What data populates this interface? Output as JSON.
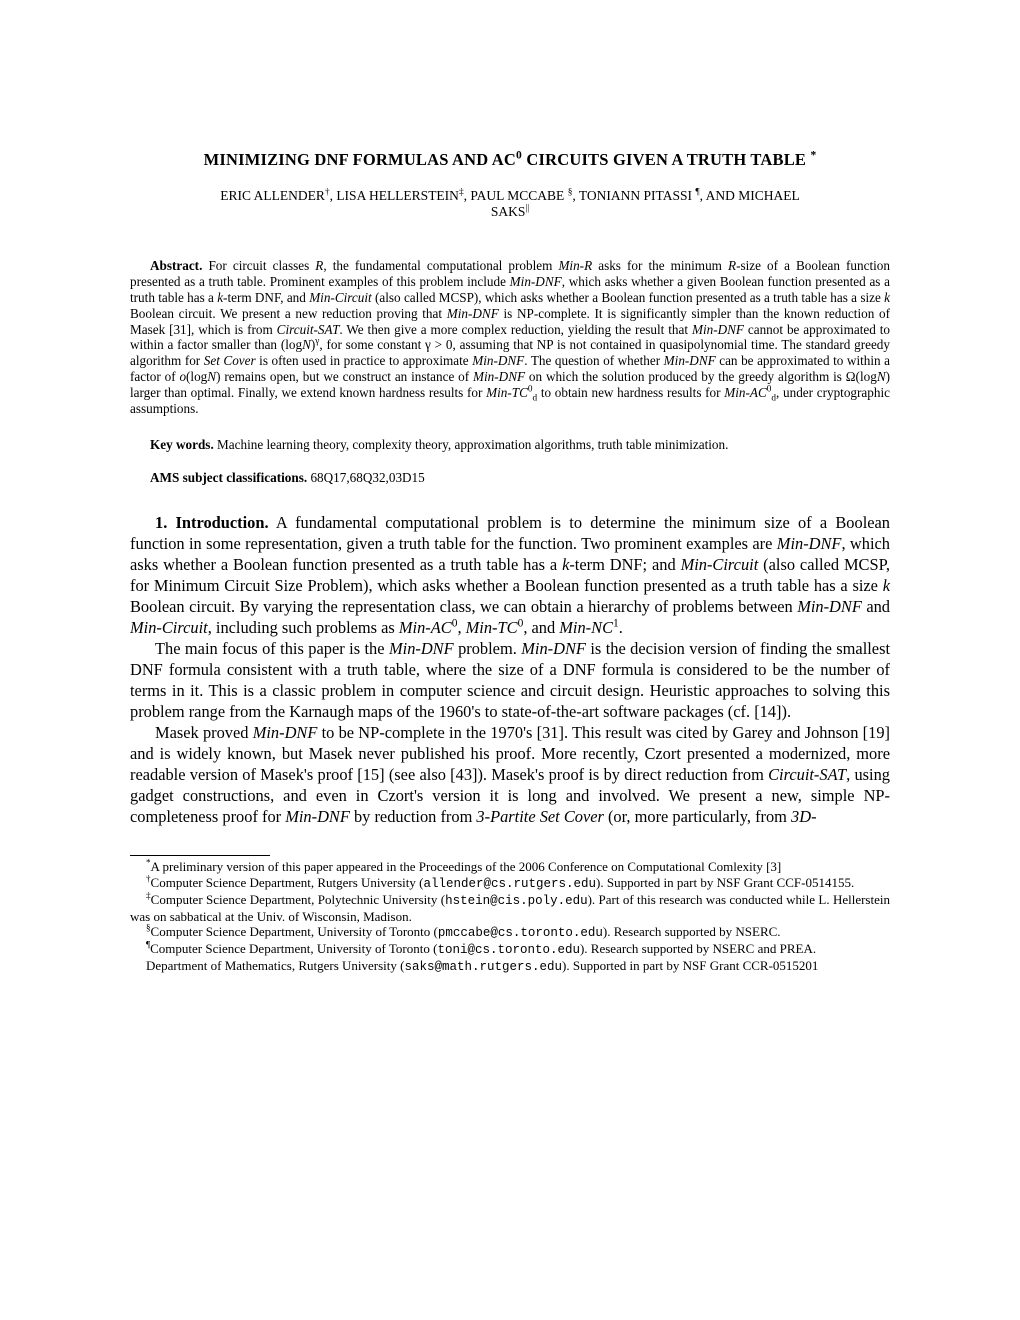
{
  "title": {
    "prefix": "MINIMIZING DNF FORMULAS AND AC",
    "sup": "0",
    "suffix": " CIRCUITS GIVEN A TRUTH TABLE ",
    "marker": "*"
  },
  "authors": {
    "a1": "ERIC ALLENDER",
    "m1": "†",
    "sep1": ", ",
    "a2": "LISA HELLERSTEIN",
    "m2": "‡",
    "sep2": ", ",
    "a3": "PAUL MCCABE ",
    "m3": "§",
    "sep3": ", ",
    "a4": "TONIANN PITASSI ",
    "m4": "¶",
    "sep4": ", ",
    "and": "AND",
    "a5": " MICHAEL",
    "a5b": "SAKS",
    "m5": "||"
  },
  "abstract": {
    "label": "Abstract.",
    "t1": " For circuit classes ",
    "i1": "R",
    "t2": ", the fundamental computational problem ",
    "i2": "Min-R",
    "t3": " asks for the minimum ",
    "i3": "R",
    "t4": "-size of a Boolean function presented as a truth table. Prominent examples of this problem include ",
    "i4": "Min-DNF",
    "t5": ", which asks whether a given Boolean function presented as a truth table has a ",
    "i5": "k",
    "t6": "-term DNF, and ",
    "i6": "Min-Circuit",
    "t7": " (also called MCSP), which asks whether a Boolean function presented as a truth table has a size ",
    "i7": "k",
    "t8": " Boolean circuit. We present a new reduction proving that ",
    "i8": "Min-DNF",
    "t9": " is NP-complete. It is significantly simpler than the known reduction of Masek [31], which is from ",
    "i9": "Circuit-SAT",
    "t10": ". We then give a more complex reduction, yielding the result that ",
    "i10": "Min-DNF",
    "t11": " cannot be approximated to within a factor smaller than (log",
    "i11": "N",
    "t12": ")",
    "sup1": "γ",
    "t13": ", for some constant γ > 0, assuming that NP is not contained in quasipolynomial time. The standard greedy algorithm for ",
    "i12": "Set Cover",
    "t14": " is often used in practice to approximate ",
    "i13": "Min-DNF",
    "t15": ". The question of whether ",
    "i14": "Min-DNF",
    "t16": " can be approximated to within a factor of ",
    "i15": "o",
    "t17": "(log",
    "i16": "N",
    "t18": ") remains open, but we construct an instance of ",
    "i17": "Min-DNF",
    "t19": " on which the solution produced by the greedy algorithm is Ω(log",
    "i18": "N",
    "t20": ") larger than optimal. Finally, we extend known hardness results for ",
    "i19": "Min-TC",
    "sup2": "0",
    "sub1": "d",
    "t21": " to obtain new hardness results for ",
    "i20": "Min-AC",
    "sup3": "0",
    "sub2": "d",
    "t22": ", under cryptographic assumptions."
  },
  "keywords": {
    "label": "Key words.",
    "text": " Machine learning theory, complexity theory, approximation algorithms, truth table minimization."
  },
  "ams": {
    "label": "AMS subject classifications.",
    "text": " 68Q17,68Q32,03D15"
  },
  "section": {
    "heading": "1. Introduction.",
    "p1a": "  A fundamental computational problem is to determine the minimum size of a Boolean function in some representation, given a truth table for the function. Two prominent examples are ",
    "p1i1": "Min-DNF",
    "p1b": ", which asks whether a Boolean function presented as a truth table has a ",
    "p1i2": "k",
    "p1c": "-term DNF; and ",
    "p1i3": "Min-Circuit",
    "p1d": " (also called MCSP, for Minimum Circuit Size Problem), which asks whether a Boolean function presented as a truth table has a size ",
    "p1i4": "k",
    "p1e": " Boolean circuit. By varying the representation class, we can obtain a hierarchy of problems between ",
    "p1i5": "Min-DNF",
    "p1f": " and ",
    "p1i6": "Min-Circuit",
    "p1g": ", including such problems as ",
    "p1i7": "Min-AC",
    "p1sup1": "0",
    "p1h": ", ",
    "p1i8": "Min-TC",
    "p1sup2": "0",
    "p1j": ", and ",
    "p1i9": "Min-NC",
    "p1sup3": "1",
    "p1k": ".",
    "p2a": "The main focus of this paper is the ",
    "p2i1": "Min-DNF",
    "p2b": " problem. ",
    "p2i2": "Min-DNF",
    "p2c": " is the decision version of finding the smallest DNF formula consistent with a truth table, where the size of a DNF formula is considered to be the number of terms in it. This is a classic problem in computer science and circuit design. Heuristic approaches to solving this problem range from the Karnaugh maps of the 1960's to state-of-the-art software packages (cf. [14]).",
    "p3a": "Masek proved ",
    "p3i1": "Min-DNF",
    "p3b": " to be NP-complete in the 1970's [31]. This result was cited by Garey and Johnson [19] and is widely known, but Masek never published his proof. More recently, Czort presented a modernized, more readable version of Masek's proof [15] (see also [43]). Masek's proof is by direct reduction from ",
    "p3i2": "Circuit-SAT",
    "p3c": ", using gadget constructions, and even in Czort's version it is long and involved. We present a new, simple NP-completeness proof for ",
    "p3i3": "Min-DNF",
    "p3d": " by reduction from ",
    "p3i4": "3-Partite Set Cover",
    "p3e": " (or, more particularly, from ",
    "p3i5": "3D-"
  },
  "footnotes": {
    "f1m": "*",
    "f1": "A preliminary version of this paper appeared in the Proceedings of the 2006 Conference on Computational Comlexity [3]",
    "f2m": "†",
    "f2a": "Computer Science Department, Rutgers University (",
    "f2tt": "allender@cs.rutgers.edu",
    "f2b": "). Supported in part by NSF Grant CCF-0514155.",
    "f3m": "‡",
    "f3a": "Computer Science Department, Polytechnic University (",
    "f3tt": "hstein@cis.poly.edu",
    "f3b": "). Part of this research was conducted while L. Hellerstein was on sabbatical at the Univ. of Wisconsin, Madison.",
    "f4m": "§",
    "f4a": "Computer Science Department, University of Toronto (",
    "f4tt": "pmccabe@cs.toronto.edu",
    "f4b": "). Research supported by NSERC.",
    "f5m": "¶",
    "f5a": "Computer Science Department, University of Toronto (",
    "f5tt": "toni@cs.toronto.edu",
    "f5b": "). Research supported by NSERC and PREA.",
    "f6a": "Department of Mathematics, Rutgers University (",
    "f6tt": "saks@math.rutgers.edu",
    "f6b": "). Supported in part by NSF Grant CCR-0515201"
  }
}
